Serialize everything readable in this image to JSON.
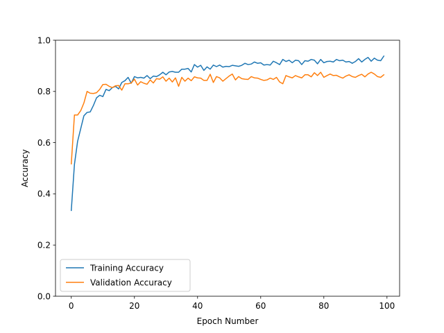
{
  "chart_data": {
    "type": "line",
    "title": "",
    "xlabel": "Epoch Number",
    "ylabel": "Accuracy",
    "xlim": [
      -5,
      104
    ],
    "ylim": [
      0.0,
      1.0
    ],
    "xticks": [
      0,
      20,
      40,
      60,
      80,
      100
    ],
    "yticks": [
      0.0,
      0.2,
      0.4,
      0.6,
      0.8,
      1.0
    ],
    "xtick_labels": [
      "0",
      "20",
      "40",
      "60",
      "80",
      "100"
    ],
    "ytick_labels": [
      "0.0",
      "0.2",
      "0.4",
      "0.6",
      "0.8",
      "1.0"
    ],
    "grid": false,
    "legend_position": "lower-left",
    "series": [
      {
        "name": "Training Accuracy",
        "color": "#1f77b4",
        "values": [
          0.335,
          0.515,
          0.605,
          0.655,
          0.705,
          0.718,
          0.72,
          0.745,
          0.775,
          0.785,
          0.78,
          0.808,
          0.803,
          0.815,
          0.82,
          0.81,
          0.835,
          0.842,
          0.855,
          0.832,
          0.858,
          0.853,
          0.855,
          0.852,
          0.862,
          0.85,
          0.86,
          0.858,
          0.865,
          0.875,
          0.865,
          0.876,
          0.878,
          0.875,
          0.875,
          0.887,
          0.887,
          0.89,
          0.876,
          0.905,
          0.895,
          0.902,
          0.882,
          0.896,
          0.887,
          0.903,
          0.897,
          0.903,
          0.895,
          0.898,
          0.897,
          0.902,
          0.9,
          0.898,
          0.902,
          0.91,
          0.905,
          0.907,
          0.915,
          0.91,
          0.912,
          0.903,
          0.905,
          0.903,
          0.918,
          0.912,
          0.905,
          0.925,
          0.917,
          0.922,
          0.912,
          0.922,
          0.92,
          0.905,
          0.92,
          0.918,
          0.925,
          0.922,
          0.908,
          0.925,
          0.912,
          0.917,
          0.918,
          0.915,
          0.925,
          0.92,
          0.922,
          0.915,
          0.917,
          0.91,
          0.917,
          0.928,
          0.915,
          0.925,
          0.933,
          0.918,
          0.93,
          0.922,
          0.92,
          0.938
        ]
      },
      {
        "name": "Validation Accuracy",
        "color": "#ff7f0e",
        "values": [
          0.517,
          0.708,
          0.708,
          0.725,
          0.755,
          0.8,
          0.793,
          0.792,
          0.795,
          0.808,
          0.827,
          0.828,
          0.82,
          0.815,
          0.822,
          0.823,
          0.805,
          0.83,
          0.83,
          0.833,
          0.848,
          0.825,
          0.838,
          0.832,
          0.828,
          0.845,
          0.833,
          0.85,
          0.848,
          0.857,
          0.84,
          0.852,
          0.837,
          0.853,
          0.82,
          0.855,
          0.84,
          0.852,
          0.842,
          0.857,
          0.853,
          0.852,
          0.843,
          0.843,
          0.867,
          0.835,
          0.858,
          0.853,
          0.84,
          0.85,
          0.86,
          0.868,
          0.845,
          0.858,
          0.85,
          0.848,
          0.847,
          0.858,
          0.853,
          0.852,
          0.847,
          0.843,
          0.845,
          0.852,
          0.847,
          0.855,
          0.837,
          0.83,
          0.862,
          0.857,
          0.853,
          0.862,
          0.857,
          0.853,
          0.865,
          0.865,
          0.857,
          0.873,
          0.862,
          0.875,
          0.855,
          0.862,
          0.868,
          0.862,
          0.863,
          0.857,
          0.852,
          0.86,
          0.865,
          0.858,
          0.855,
          0.862,
          0.867,
          0.857,
          0.868,
          0.875,
          0.868,
          0.858,
          0.855,
          0.865
        ]
      }
    ]
  }
}
